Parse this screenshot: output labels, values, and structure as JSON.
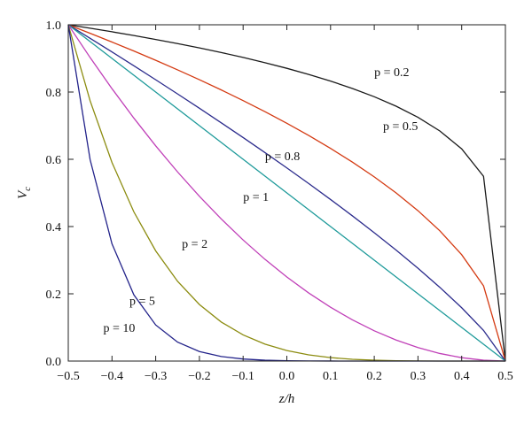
{
  "chart_data": {
    "type": "line",
    "title": "",
    "xlabel": "z/h",
    "ylabel": "V_c",
    "xlim": [
      -0.5,
      0.5
    ],
    "ylim": [
      0.0,
      1.0
    ],
    "x_ticks": [
      "−0.5",
      "−0.4",
      "−0.3",
      "−0.2",
      "−0.1",
      "0.0",
      "0.1",
      "0.2",
      "0.3",
      "0.4",
      "0.5"
    ],
    "y_ticks": [
      "0.0",
      "0.2",
      "0.4",
      "0.6",
      "0.8",
      "1.0"
    ],
    "grid": false,
    "legend": "none",
    "series": [
      {
        "name": "p = 0.2",
        "p": 0.2,
        "color": "#1a1a1a",
        "label_at": [
          0.2,
          0.86
        ]
      },
      {
        "name": "p = 0.5",
        "p": 0.5,
        "color": "#d43a12",
        "label_at": [
          0.22,
          0.7
        ]
      },
      {
        "name": "p = 0.8",
        "p": 0.8,
        "color": "#2b2b8c",
        "label_at": [
          -0.05,
          0.61
        ]
      },
      {
        "name": "p = 1",
        "p": 1,
        "color": "#1e9a9a",
        "label_at": [
          -0.1,
          0.49
        ]
      },
      {
        "name": "p = 2",
        "p": 2,
        "color": "#c040b8",
        "label_at": [
          -0.24,
          0.35
        ]
      },
      {
        "name": "p = 5",
        "p": 5,
        "color": "#8c8c10",
        "label_at": [
          -0.36,
          0.18
        ]
      },
      {
        "name": "p = 10",
        "p": 10,
        "color": "#23238a",
        "label_at": [
          -0.42,
          0.1
        ]
      }
    ]
  }
}
